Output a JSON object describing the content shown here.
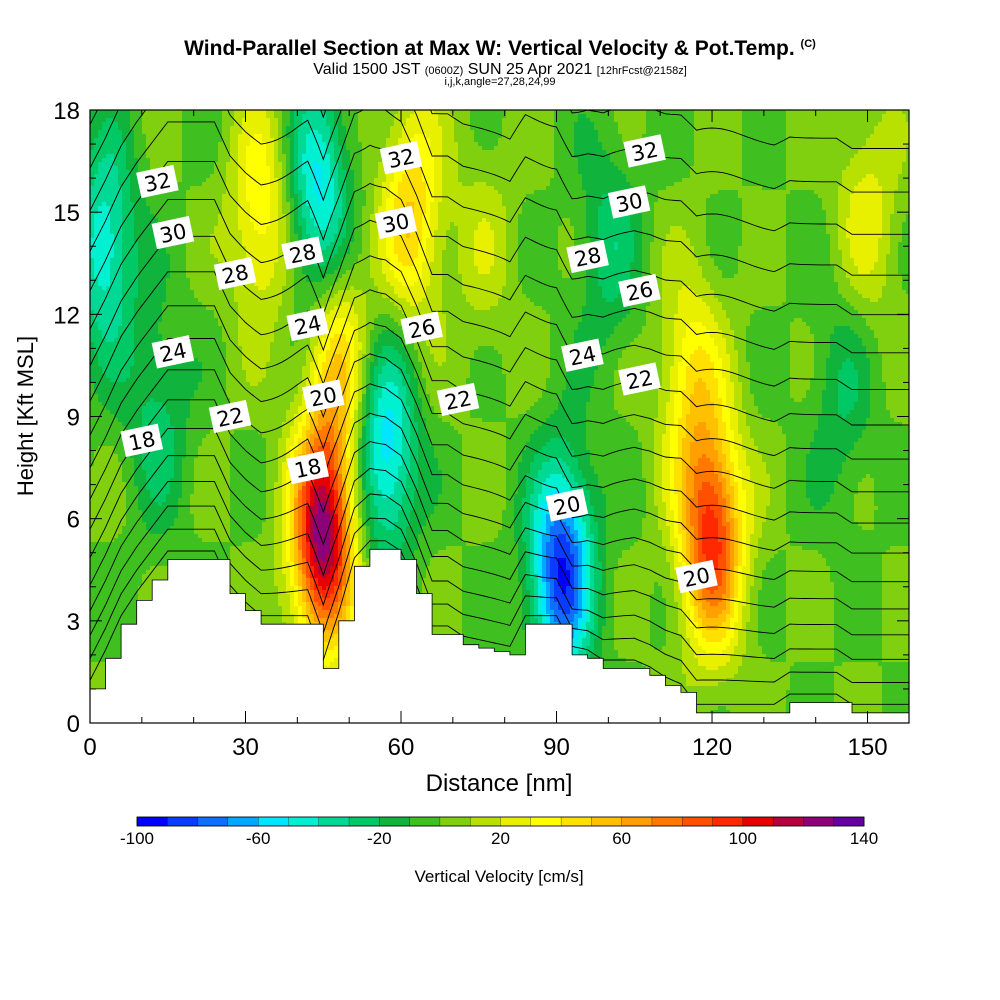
{
  "header": {
    "title": "Wind-Parallel Section at Max W: Vertical Velocity & Pot.Temp.",
    "title_mark": "(C)",
    "subtitle_a": "Valid 1500 JST",
    "subtitle_b": "(0600Z)",
    "subtitle_c": "SUN 25 Apr 2021",
    "subtitle_d": "[12hrFcst@2158z]",
    "subtitle2": "i,j,k,angle=27,28,24,99"
  },
  "chart_data": {
    "type": "heatmap",
    "xlabel": "Distance [nm]",
    "ylabel": "Height [Kft MSL]",
    "xlim": [
      0,
      158
    ],
    "ylim": [
      0,
      18
    ],
    "x_ticks": [
      0,
      30,
      60,
      90,
      120,
      150
    ],
    "y_ticks": [
      0,
      3,
      6,
      9,
      12,
      15,
      18
    ],
    "colorbar": {
      "label": "Vertical Velocity [cm/s]",
      "min": -100,
      "max": 140,
      "step": 10,
      "tick_labels": [
        -100,
        -60,
        -20,
        20,
        60,
        100,
        140
      ],
      "colors": [
        "#0000ff",
        "#0a3cff",
        "#0f6eff",
        "#00a8ff",
        "#00e6ff",
        "#00f0d2",
        "#00d996",
        "#00c864",
        "#10b43c",
        "#40c020",
        "#80d010",
        "#b8e000",
        "#e8f000",
        "#ffff00",
        "#ffe000",
        "#ffc000",
        "#ff9f00",
        "#ff7800",
        "#ff5000",
        "#ff2800",
        "#e60000",
        "#b4003c",
        "#8c0078",
        "#6400a0"
      ]
    },
    "w_field": {
      "base_cm_s": 0,
      "anomalies": [
        {
          "x": 45,
          "z": 5.5,
          "w": 125,
          "note": "updraft"
        },
        {
          "x": 48,
          "z": 10.5,
          "w": 45
        },
        {
          "x": 33,
          "z": 15.0,
          "w": 40
        },
        {
          "x": 62,
          "z": 15.0,
          "w": 50
        },
        {
          "x": 120,
          "z": 5.5,
          "w": 95
        },
        {
          "x": 116,
          "z": 10.0,
          "w": 40
        },
        {
          "x": 91,
          "z": 4.5,
          "w": -90,
          "note": "downdraft"
        },
        {
          "x": 57,
          "z": 8.0,
          "w": -60
        },
        {
          "x": 44,
          "z": 15.5,
          "w": -55
        },
        {
          "x": 3,
          "z": 14.0,
          "w": -50
        },
        {
          "x": 13,
          "z": 9.0,
          "w": -25
        },
        {
          "x": 100,
          "z": 14.0,
          "w": -25
        },
        {
          "x": 145,
          "z": 9.5,
          "w": -20
        },
        {
          "x": 150,
          "z": 15.0,
          "w": 25
        },
        {
          "x": 76,
          "z": 14.0,
          "w": 15
        }
      ]
    },
    "terrain_kft": {
      "x": [
        0,
        3,
        6,
        9,
        12,
        15,
        18,
        21,
        24,
        27,
        30,
        33,
        36,
        39,
        42,
        45,
        48,
        51,
        54,
        57,
        60,
        63,
        66,
        69,
        72,
        75,
        78,
        81,
        84,
        87,
        90,
        93,
        96,
        99,
        102,
        105,
        108,
        111,
        114,
        117,
        120,
        123,
        126,
        129,
        132,
        135,
        138,
        141,
        144,
        147,
        150,
        153,
        156,
        158
      ],
      "z": [
        1.0,
        1.9,
        2.9,
        3.6,
        4.2,
        4.8,
        4.8,
        4.8,
        4.8,
        3.8,
        3.3,
        2.9,
        2.9,
        2.9,
        2.9,
        1.6,
        3.0,
        4.6,
        5.1,
        5.1,
        4.8,
        3.8,
        2.6,
        2.6,
        2.3,
        2.2,
        2.1,
        2.0,
        2.9,
        2.9,
        2.9,
        2.0,
        1.9,
        1.6,
        1.6,
        1.6,
        1.4,
        1.1,
        0.9,
        0.3,
        0.3,
        0.3,
        0.3,
        0.3,
        0.3,
        0.6,
        0.6,
        0.6,
        0.6,
        0.3,
        0.3,
        0.3,
        0.3,
        0.3
      ]
    },
    "theta_contours": {
      "levels": [
        18,
        20,
        22,
        24,
        26,
        28,
        30,
        32
      ],
      "label_positions": [
        {
          "v": "32",
          "x": 13,
          "z": 15.9
        },
        {
          "v": "30",
          "x": 16,
          "z": 14.4
        },
        {
          "v": "28",
          "x": 28,
          "z": 13.2
        },
        {
          "v": "24",
          "x": 16,
          "z": 10.9
        },
        {
          "v": "22",
          "x": 27,
          "z": 9.0
        },
        {
          "v": "18",
          "x": 10,
          "z": 8.3
        },
        {
          "v": "28",
          "x": 41,
          "z": 13.8
        },
        {
          "v": "24",
          "x": 42,
          "z": 11.7
        },
        {
          "v": "20",
          "x": 45,
          "z": 9.6
        },
        {
          "v": "18",
          "x": 42,
          "z": 7.5
        },
        {
          "v": "32",
          "x": 60,
          "z": 16.6
        },
        {
          "v": "30",
          "x": 59,
          "z": 14.7
        },
        {
          "v": "26",
          "x": 64,
          "z": 11.6
        },
        {
          "v": "22",
          "x": 71,
          "z": 9.5
        },
        {
          "v": "20",
          "x": 92,
          "z": 6.4
        },
        {
          "v": "24",
          "x": 95,
          "z": 10.8
        },
        {
          "v": "28",
          "x": 96,
          "z": 13.7
        },
        {
          "v": "32",
          "x": 107,
          "z": 16.8
        },
        {
          "v": "30",
          "x": 104,
          "z": 15.3
        },
        {
          "v": "26",
          "x": 106,
          "z": 12.7
        },
        {
          "v": "22",
          "x": 106,
          "z": 10.1
        },
        {
          "v": "20",
          "x": 117,
          "z": 4.3
        }
      ]
    }
  }
}
